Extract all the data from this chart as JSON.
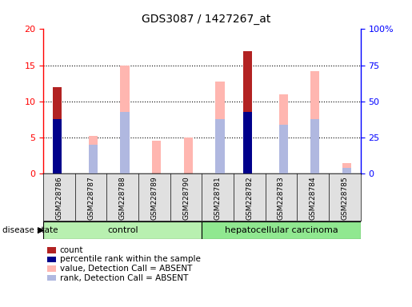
{
  "title": "GDS3087 / 1427267_at",
  "samples": [
    "GSM228786",
    "GSM228787",
    "GSM228788",
    "GSM228789",
    "GSM228790",
    "GSM228781",
    "GSM228782",
    "GSM228783",
    "GSM228784",
    "GSM228785"
  ],
  "count_values": [
    12,
    0,
    0,
    0,
    0,
    0,
    17,
    0,
    0,
    0
  ],
  "percentile_rank": [
    7.5,
    0,
    0,
    0,
    0,
    0,
    8.5,
    0,
    0,
    0
  ],
  "absent_value": [
    0,
    5.2,
    15.0,
    4.5,
    5.0,
    12.7,
    0,
    11.0,
    14.2,
    1.4
  ],
  "absent_rank": [
    0,
    4.0,
    8.5,
    0,
    0,
    7.5,
    0,
    6.8,
    7.5,
    0.8
  ],
  "ylim_left": [
    0,
    20
  ],
  "ylim_right": [
    0,
    100
  ],
  "yticks_left": [
    0,
    5,
    10,
    15,
    20
  ],
  "yticks_right": [
    0,
    25,
    50,
    75,
    100
  ],
  "ytick_labels_right": [
    "0",
    "25",
    "50",
    "75",
    "100%"
  ],
  "color_count": "#b22222",
  "color_percentile": "#00008b",
  "color_absent_value": "#ffb6b0",
  "color_absent_rank": "#b0b8e0",
  "group_control_color": "#b8f0b0",
  "group_cancer_color": "#90e890",
  "legend_items": [
    "count",
    "percentile rank within the sample",
    "value, Detection Call = ABSENT",
    "rank, Detection Call = ABSENT"
  ],
  "legend_colors": [
    "#b22222",
    "#00008b",
    "#ffb6b0",
    "#b0b8e0"
  ],
  "n_control": 5,
  "n_cancer": 5
}
